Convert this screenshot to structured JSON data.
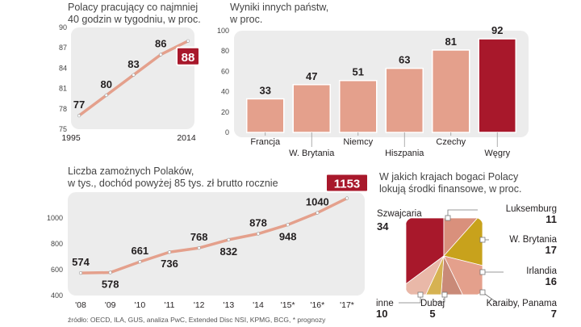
{
  "colors": {
    "line": "#e4a08c",
    "bar": "#e4a08c",
    "highlight": "#a8182b",
    "panel": "#ececec",
    "gold": "#c8a21c",
    "point": "#ffffff"
  },
  "chart_data": [
    {
      "id": "workers",
      "type": "line",
      "title_lines": [
        "Polacy pracujący co najmniej",
        "40 godzin w tygodniu, w proc."
      ],
      "x_labels": [
        "1995",
        "2014"
      ],
      "values": [
        77,
        80,
        83,
        86,
        88
      ],
      "ylim": [
        75,
        90
      ],
      "y_ticks": [
        75,
        78,
        81,
        84,
        87,
        90
      ],
      "highlight_last": true
    },
    {
      "id": "countries",
      "type": "bar",
      "title_lines": [
        "Wyniki innych państw,",
        "w proc."
      ],
      "categories": [
        "Francja",
        "W. Brytania",
        "Niemcy",
        "Hiszpania",
        "Czechy",
        "Węgry"
      ],
      "values": [
        33,
        47,
        51,
        63,
        81,
        92
      ],
      "y_ticks": [
        0,
        20,
        40,
        60,
        80,
        100
      ],
      "ylim": [
        0,
        100
      ],
      "highlight_last": true
    },
    {
      "id": "wealthy",
      "type": "line",
      "title_lines": [
        "Liczba zamożnych Polaków,",
        "w tys., dochód powyżej 85 tys. zł brutto rocznie"
      ],
      "categories": [
        "'08",
        "'09",
        "'10",
        "'11",
        "'12",
        "'13",
        "'14",
        "'15*",
        "'16*",
        "'17*"
      ],
      "values": [
        574,
        578,
        661,
        736,
        768,
        832,
        878,
        948,
        1040,
        1153
      ],
      "ylim": [
        400,
        1200
      ],
      "y_ticks": [
        400,
        600,
        800,
        1000
      ],
      "highlight_last": true
    },
    {
      "id": "destinations",
      "type": "pie",
      "title_lines": [
        "W jakich krajach bogaci Polacy",
        "lokują środki finansowe, w proc."
      ],
      "slices": [
        {
          "label": "Szwajcaria",
          "value": 34
        },
        {
          "label": "Luksemburg",
          "value": 11
        },
        {
          "label": "W. Brytania",
          "value": 17
        },
        {
          "label": "Irlandia",
          "value": 16
        },
        {
          "label": "Karaiby, Panama",
          "value": 7
        },
        {
          "label": "Dubaj",
          "value": 5
        },
        {
          "label": "inne",
          "value": 10
        }
      ]
    }
  ],
  "source": "źródło: OECD, ILA, GUS, analiza PwC, Extended Disc NSI, KPMG, BCG, * prognozy"
}
